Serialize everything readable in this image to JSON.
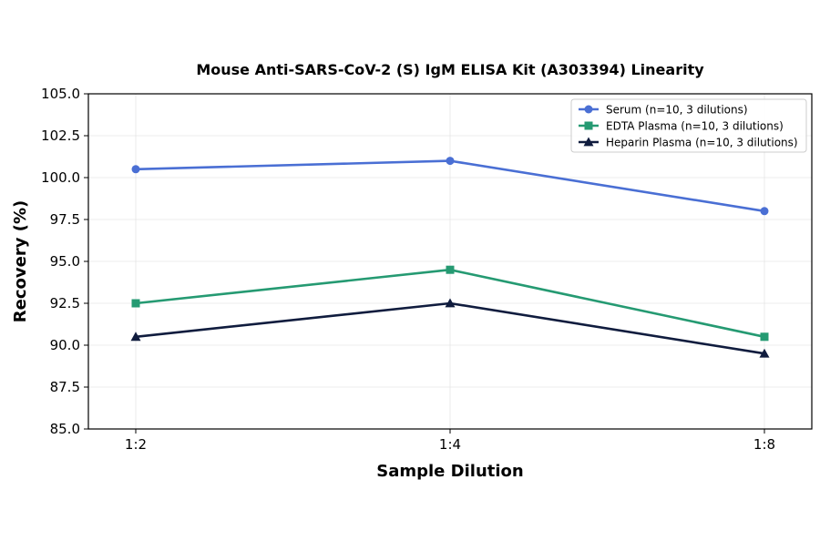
{
  "chart_data": {
    "type": "line",
    "title": "Mouse Anti-SARS-CoV-2 (S) IgM ELISA Kit (A303394) Linearity",
    "xlabel": "Sample Dilution",
    "ylabel": "Recovery (%)",
    "categories": [
      "1:2",
      "1:4",
      "1:8"
    ],
    "ylim": [
      85.0,
      105.0
    ],
    "yticks": [
      "85.0",
      "87.5",
      "90.0",
      "92.5",
      "95.0",
      "97.5",
      "100.0",
      "102.5",
      "105.0"
    ],
    "grid": true,
    "legend_position": "top-right",
    "series": [
      {
        "name": "Serum (n=10, 3 dilutions)",
        "values": [
          100.5,
          101.0,
          98.0
        ],
        "color": "#4a6fd4",
        "marker": "circle"
      },
      {
        "name": "EDTA Plasma (n=10, 3 dilutions)",
        "values": [
          92.5,
          94.5,
          90.5
        ],
        "color": "#259a72",
        "marker": "square"
      },
      {
        "name": "Heparin Plasma (n=10, 3 dilutions)",
        "values": [
          90.5,
          92.5,
          89.5
        ],
        "color": "#101c3e",
        "marker": "triangle"
      }
    ]
  }
}
